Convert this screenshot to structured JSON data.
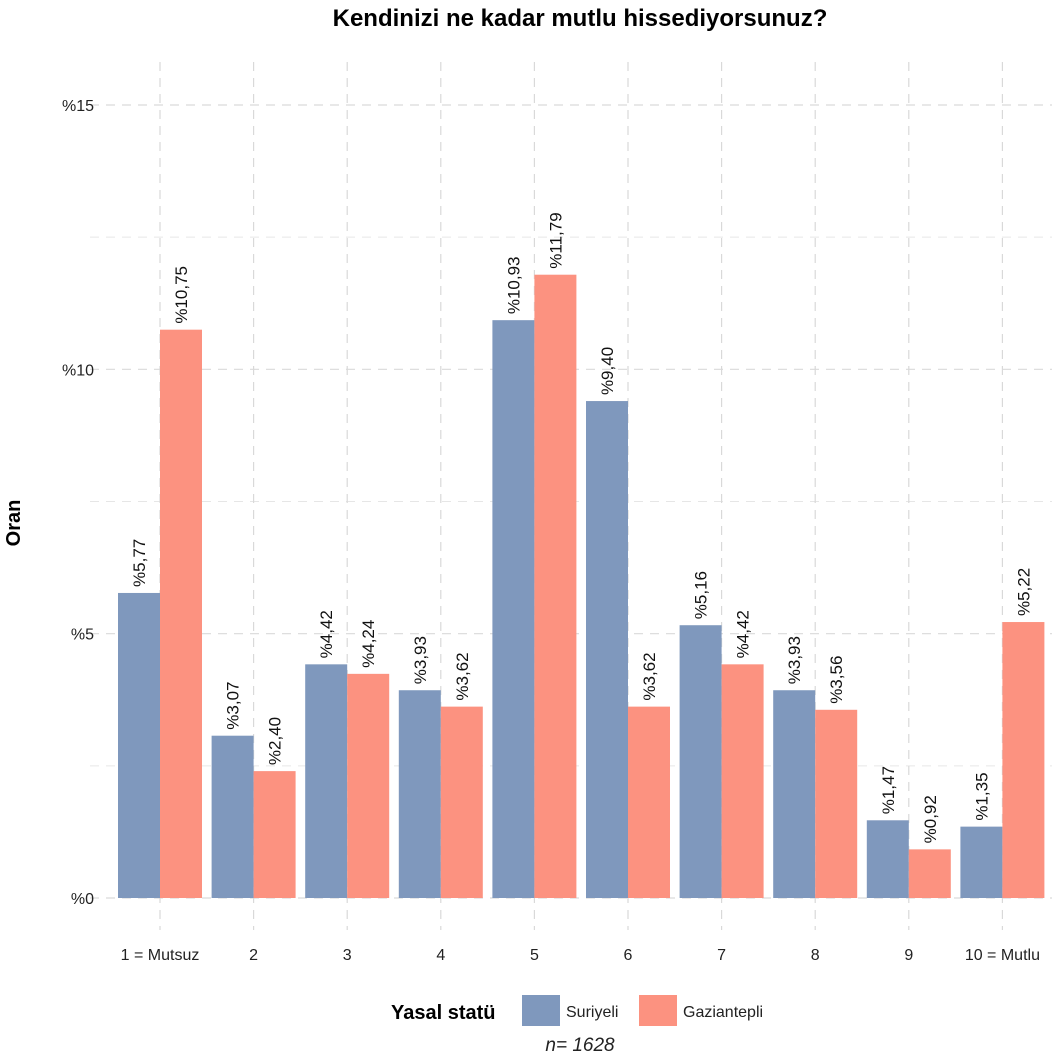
{
  "chart_data": {
    "type": "bar",
    "title": "Kendinizi ne kadar mutlu hissediyorsunuz?",
    "xlabel": "",
    "ylabel": "Oran",
    "ylim": [
      0,
      15
    ],
    "yticks": [
      0,
      5,
      10,
      15
    ],
    "ytick_labels": [
      "%0",
      "%5",
      "%10",
      "%15"
    ],
    "categories": [
      "1 = Mutsuz",
      "2",
      "3",
      "4",
      "5",
      "6",
      "7",
      "8",
      "9",
      "10 = Mutlu"
    ],
    "series": [
      {
        "name": "Suriyeli",
        "color": "#7f98bd",
        "values": [
          5.77,
          3.07,
          4.42,
          3.93,
          10.93,
          9.4,
          5.16,
          3.93,
          1.47,
          1.35
        ],
        "labels": [
          "%5,77",
          "%3,07",
          "%4,42",
          "%3,93",
          "%10,93",
          "%9,40",
          "%5,16",
          "%3,93",
          "%1,47",
          "%1,35"
        ]
      },
      {
        "name": "Gaziantepli",
        "color": "#fc9280",
        "values": [
          10.75,
          2.4,
          4.24,
          3.62,
          11.79,
          3.62,
          4.42,
          3.56,
          0.92,
          5.22
        ],
        "labels": [
          "%10,75",
          "%2,40",
          "%4,24",
          "%3,62",
          "%11,79",
          "%3,62",
          "%4,42",
          "%3,56",
          "%0,92",
          "%5,22"
        ]
      }
    ],
    "legend": {
      "title": "Yasal statü",
      "position": "bottom"
    },
    "caption": "n=  1628",
    "grid": true
  }
}
